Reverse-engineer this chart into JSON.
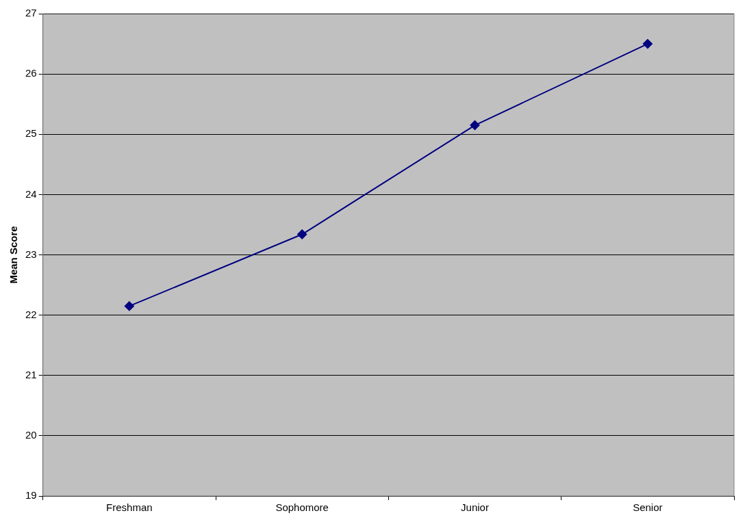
{
  "chart_data": {
    "type": "line",
    "ylabel": "Mean Score",
    "categories": [
      "Freshman",
      "Sophomore",
      "Junior",
      "Senior"
    ],
    "series": [
      {
        "color": "#000080",
        "values": [
          22.15,
          23.34,
          25.15,
          26.5
        ]
      }
    ],
    "ylim": [
      19,
      27
    ],
    "yticks": [
      19,
      20,
      21,
      22,
      23,
      24,
      25,
      26,
      27
    ],
    "grid": "y",
    "marker": "diamond",
    "line_style": "solid",
    "legend": false
  }
}
